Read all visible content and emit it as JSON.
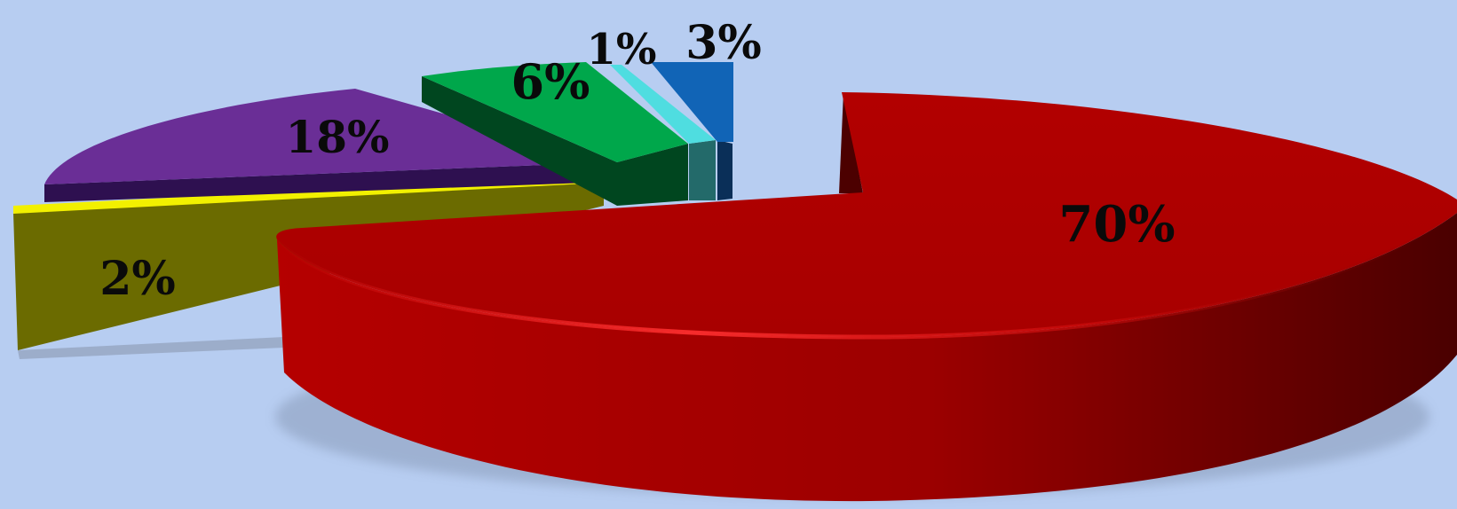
{
  "chart_data": {
    "type": "pie",
    "style": "3d-exploded",
    "grid": false,
    "legend": "none",
    "slices": [
      {
        "label": "70%",
        "value": 70,
        "color": "#b00000"
      },
      {
        "label": "2%",
        "value": 2,
        "color": "#6b6b00"
      },
      {
        "label": "18%",
        "value": 18,
        "color": "#6a2e96"
      },
      {
        "label": "6%",
        "value": 6,
        "color": "#00a74b"
      },
      {
        "label": "1%",
        "value": 1,
        "color": "#4fdde0"
      },
      {
        "label": "3%",
        "value": 3,
        "color": "#1164b6"
      }
    ]
  }
}
